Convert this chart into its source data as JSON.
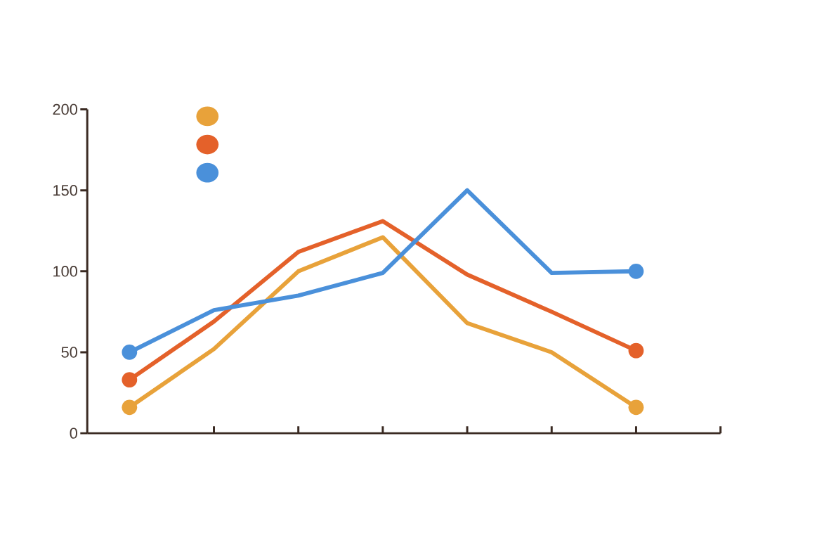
{
  "chart_data": {
    "type": "line",
    "categories": [
      null,
      null,
      null,
      null,
      null,
      null,
      null
    ],
    "series": [
      {
        "color": "#e8a23a",
        "values": [
          16,
          52,
          100,
          121,
          68,
          50,
          16
        ]
      },
      {
        "color": "#e4612a",
        "values": [
          33,
          69,
          112,
          131,
          98,
          75,
          51
        ]
      },
      {
        "color": "#4a90da",
        "values": [
          50,
          76,
          85,
          99,
          150,
          99,
          100
        ]
      }
    ],
    "ylim": [
      0,
      200
    ],
    "yticks": [
      {
        "value": 0,
        "label": "0"
      },
      {
        "value": 50,
        "label": "50"
      },
      {
        "value": 100,
        "label": "100"
      },
      {
        "value": 150,
        "label": "150"
      },
      {
        "value": 200,
        "label": "200"
      }
    ],
    "tick_labels": "y",
    "grid": false,
    "line_style": "solid"
  }
}
